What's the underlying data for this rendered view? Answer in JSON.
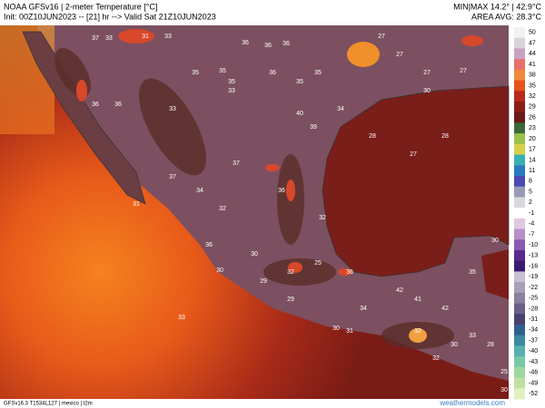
{
  "header": {
    "title": "NOAA GFSv16 | 2-meter Temperature [°C]",
    "init": "Init: 00Z10JUN2023 -- [21] hr --> Valid Sat 21Z10JUN2023",
    "minmax": "MIN|MAX 14.2° | 42.9°C",
    "area_avg": "AREA AVG: 28.3°C"
  },
  "footer": {
    "model": "GFSv16.3 T1534L127 | mexico | t2m",
    "site": "weathermodels.com"
  },
  "colorbar": {
    "ticks": [
      50,
      47,
      44,
      41,
      38,
      35,
      32,
      29,
      26,
      23,
      20,
      17,
      14,
      11,
      8,
      5,
      2,
      -1,
      -4,
      -7,
      -10,
      -13,
      -16,
      -19,
      -22,
      -25,
      -28,
      -31,
      -34,
      -37,
      -40,
      -43,
      -46,
      -49,
      -52
    ],
    "colors": [
      "#f2f2f2",
      "#d9d2d8",
      "#c9a2c0",
      "#e8706a",
      "#f08a3a",
      "#e8501e",
      "#b82a1e",
      "#8c1e18",
      "#6a1a18",
      "#3a6a3a",
      "#9ac24a",
      "#d8d04a",
      "#3ab0b0",
      "#2a7ac0",
      "#4a4ab0",
      "#9a9ab8",
      "#d8d8e0",
      "#ffffff",
      "#e0c8e0",
      "#b890c8",
      "#8a5ab0",
      "#5a2a90",
      "#3a1a70",
      "#c8c0d0",
      "#a8a0b8",
      "#8a80a0",
      "#6a6088",
      "#4a4070",
      "#306090",
      "#3a8aa0",
      "#5ab0b0",
      "#7ac8a8",
      "#9ad8a0",
      "#c0e0a0",
      "#e0f0c0"
    ]
  },
  "map_labels": [
    37,
    33,
    31,
    33,
    36,
    36,
    36,
    35,
    35,
    35,
    36,
    35,
    35,
    27,
    27,
    27,
    27,
    30,
    36,
    36,
    33,
    33,
    40,
    39,
    34,
    28,
    27,
    28,
    37,
    37,
    34,
    36,
    32,
    32,
    31,
    36,
    30,
    29,
    32,
    25,
    36,
    29,
    30,
    42,
    41,
    42,
    35,
    30,
    34,
    30,
    31,
    32,
    32,
    30,
    33,
    28,
    25,
    30,
    33
  ]
}
